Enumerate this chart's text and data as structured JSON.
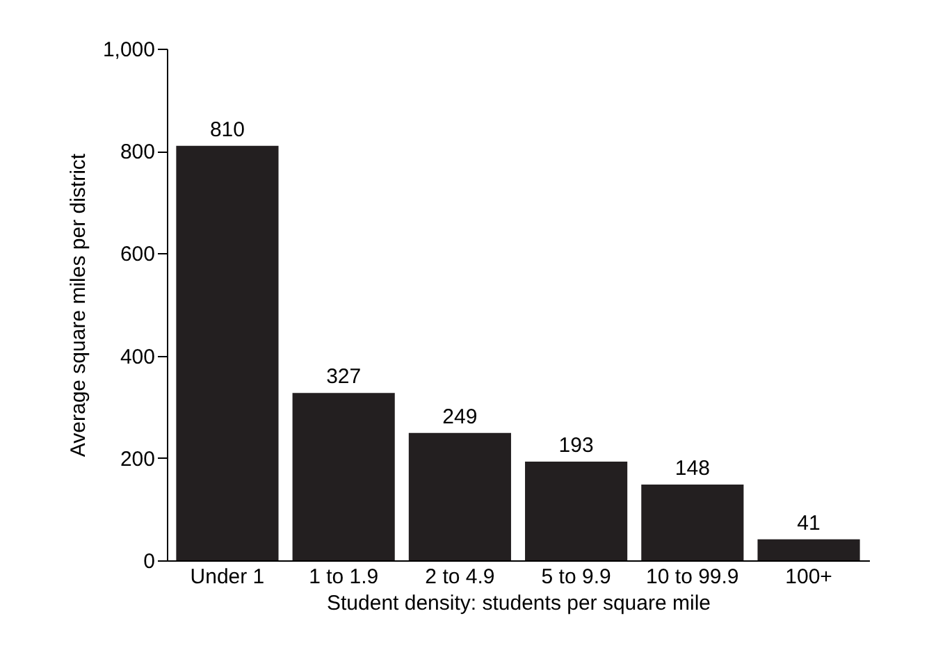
{
  "chart_data": {
    "type": "bar",
    "xlabel": "Student density: students per square mile",
    "ylabel": "Average square miles per district",
    "categories": [
      "Under 1",
      "1 to 1.9",
      "2 to 4.9",
      "5 to 9.9",
      "10 to 99.9",
      "100+"
    ],
    "values": [
      810,
      327,
      249,
      193,
      148,
      41
    ],
    "color": "#231f20",
    "ylim": [
      0,
      1000
    ],
    "yticks": [
      0,
      200,
      400,
      600,
      800,
      {
        "value": 1000,
        "label": "1,000"
      }
    ],
    "data_labels": true,
    "grid": false
  }
}
